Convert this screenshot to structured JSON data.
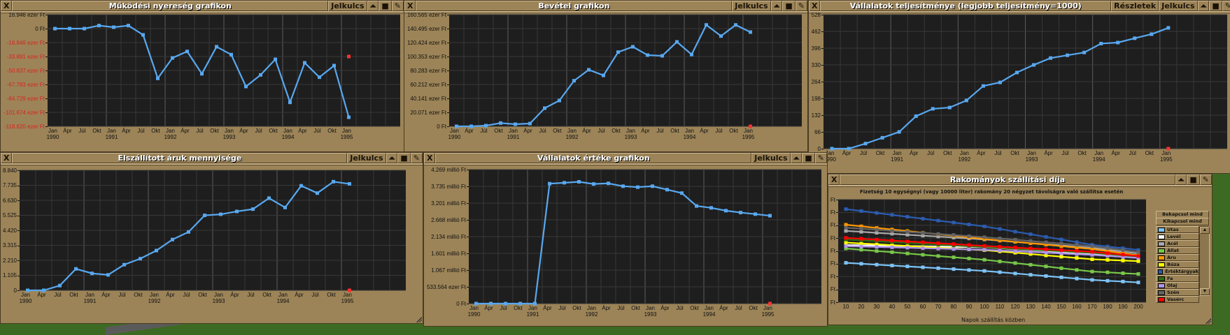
{
  "close_label": "X",
  "windows": [
    {
      "title": "Működési nyereség grafikon",
      "legend_label": "Jelkulcs"
    },
    {
      "title": "Bevétel grafikon",
      "legend_label": "Jelkulcs"
    },
    {
      "title": "Vállalatok teljesítménye (legjobb teljesítmény=1000)",
      "details_label": "Részletek",
      "legend_label": "Jelkulcs"
    },
    {
      "title": "Elszállított áruk mennyisége",
      "legend_label": "Jelkulcs"
    },
    {
      "title": "Vállalatok értéke grafikon",
      "legend_label": "Jelkulcs"
    },
    {
      "title": "Rakományok szállítási díja",
      "subtitle": "Fizetség 10 egységnyi (vagy 10000 liter) rakomány 20 négyzet távolságra való szállítsa esetén",
      "enable_all_label": "Bekapcsol mind",
      "disable_all_label": "Kikapcsol mind"
    }
  ],
  "chart_data": [
    {
      "type": "line",
      "title": "Működési nyereség grafikon",
      "unit": "ezer Ft",
      "ylim": [
        -118.62,
        16.946
      ],
      "grid": true,
      "zero_line": true,
      "y_tick_labels": [
        "16.946 ezer Ft",
        "0 Ft",
        "-16.946 ezer Ft",
        "-33.891 ezer Ft",
        "-50.837 ezer Ft",
        "-67.783 ezer Ft",
        "-84.729 ezer Ft",
        "-101.674 ezer Ft",
        "-118.620 ezer Ft"
      ],
      "x_months": [
        "Jan",
        "Ápr",
        "Júl",
        "Okt",
        "Jan",
        "Ápr",
        "Júl",
        "Okt",
        "Jan",
        "Ápr",
        "Júl",
        "Okt",
        "Jan",
        "Ápr",
        "Júl",
        "Okt",
        "Jan",
        "Ápr",
        "Júl",
        "Okt",
        "Jan"
      ],
      "x_years": [
        "1990",
        "",
        "",
        "",
        "1991",
        "",
        "",
        "",
        "1992",
        "",
        "",
        "",
        "1993",
        "",
        "",
        "",
        "1994",
        "",
        "",
        "",
        "1995"
      ],
      "series": [
        {
          "color": "#58a8f0",
          "values": [
            0,
            0,
            0,
            3.7,
            1.7,
            3.7,
            -7.6,
            -60.4,
            -35.6,
            -27.7,
            -54.8,
            -22.0,
            -31.6,
            -70.3,
            -56.2,
            -37.3,
            -89.5,
            -41.5,
            -59.0,
            -44.9,
            -107.6
          ]
        },
        {
          "color": "#ff3030",
          "values": [
            null,
            null,
            null,
            null,
            null,
            null,
            null,
            null,
            null,
            null,
            null,
            null,
            null,
            null,
            null,
            null,
            null,
            null,
            null,
            null,
            -33.891
          ]
        }
      ]
    },
    {
      "type": "line",
      "title": "Bevétel grafikon",
      "unit": "ezer Ft",
      "ylim": [
        0,
        160.565
      ],
      "grid": true,
      "y_tick_labels": [
        "160.565 ezer Ft",
        "140.495 ezer Ft",
        "120.424 ezer Ft",
        "100.353 ezer Ft",
        "80.283 ezer Ft",
        "60.212 ezer Ft",
        "40.141 ezer Ft",
        "20.071 ezer Ft",
        "0 Ft"
      ],
      "x_months": [
        "Jan",
        "Ápr",
        "Júl",
        "Okt",
        "Jan",
        "Ápr",
        "Júl",
        "Okt",
        "Jan",
        "Ápr",
        "Júl",
        "Okt",
        "Jan",
        "Ápr",
        "Júl",
        "Okt",
        "Jan",
        "Ápr",
        "Júl",
        "Okt",
        "Jan"
      ],
      "x_years": [
        "1990",
        "",
        "",
        "",
        "1991",
        "",
        "",
        "",
        "1992",
        "",
        "",
        "",
        "1993",
        "",
        "",
        "",
        "1994",
        "",
        "",
        "",
        "1995"
      ],
      "series": [
        {
          "color": "#58a8f0",
          "values": [
            0,
            0,
            1.0,
            4.7,
            3.0,
            4.0,
            26.1,
            37.1,
            65.6,
            81.3,
            73.2,
            106.7,
            114.4,
            102.4,
            101.4,
            121.4,
            103.3,
            145.8,
            129.8,
            145.8,
            135.5
          ]
        },
        {
          "color": "#ff3030",
          "values": [
            null,
            null,
            null,
            null,
            null,
            null,
            null,
            null,
            null,
            null,
            null,
            null,
            null,
            null,
            null,
            null,
            null,
            null,
            null,
            null,
            0
          ]
        }
      ]
    },
    {
      "type": "line",
      "title": "Vállalatok teljesítménye (legjobb teljesítmény=1000)",
      "ylim": [
        0,
        528
      ],
      "grid": true,
      "y_tick_labels": [
        "528",
        "462",
        "396",
        "330",
        "264",
        "198",
        "132",
        "66",
        "0"
      ],
      "x_months": [
        "Jan",
        "Ápr",
        "Júl",
        "Okt",
        "Jan",
        "Ápr",
        "Júl",
        "Okt",
        "Jan",
        "Ápr",
        "Júl",
        "Okt",
        "Jan",
        "Ápr",
        "Júl",
        "Okt",
        "Jan",
        "Ápr",
        "Júl",
        "Okt",
        "Jan"
      ],
      "x_years": [
        "1990",
        "",
        "",
        "",
        "1991",
        "",
        "",
        "",
        "1992",
        "",
        "",
        "",
        "1993",
        "",
        "",
        "",
        "1994",
        "",
        "",
        "",
        "1995"
      ],
      "series": [
        {
          "color": "#58a8f0",
          "values": [
            0,
            0,
            20,
            43,
            66,
            128,
            157,
            162,
            190,
            247,
            261,
            300,
            330,
            357,
            368,
            379,
            414,
            418,
            435,
            451,
            476
          ]
        },
        {
          "color": "#ff3030",
          "values": [
            null,
            null,
            null,
            null,
            null,
            null,
            null,
            null,
            null,
            null,
            null,
            null,
            null,
            null,
            null,
            null,
            null,
            null,
            null,
            null,
            0
          ]
        }
      ]
    },
    {
      "type": "line",
      "title": "Elszállított áruk mennyisége",
      "ylim": [
        0,
        8840
      ],
      "grid": true,
      "y_tick_labels": [
        "8.840",
        "7.735",
        "6.630",
        "5.525",
        "4.420",
        "3.315",
        "2.210",
        "1.105",
        "0"
      ],
      "x_months": [
        "Jan",
        "Ápr",
        "Júl",
        "Okt",
        "Jan",
        "Ápr",
        "Júl",
        "Okt",
        "Jan",
        "Ápr",
        "Júl",
        "Okt",
        "Jan",
        "Ápr",
        "Júl",
        "Okt",
        "Jan",
        "Ápr",
        "Júl",
        "Okt",
        "Jan"
      ],
      "x_years": [
        "1990",
        "",
        "",
        "",
        "1991",
        "",
        "",
        "",
        "1992",
        "",
        "",
        "",
        "1993",
        "",
        "",
        "",
        "1994",
        "",
        "",
        "",
        "1995"
      ],
      "series": [
        {
          "color": "#58a8f0",
          "values": [
            0,
            0,
            350,
            1580,
            1250,
            1140,
            1890,
            2330,
            2930,
            3740,
            4300,
            5520,
            5600,
            5810,
            5980,
            6790,
            6100,
            7700,
            7160,
            8000,
            7840
          ]
        },
        {
          "color": "#ff3030",
          "values": [
            null,
            null,
            null,
            null,
            null,
            null,
            null,
            null,
            null,
            null,
            null,
            null,
            null,
            null,
            null,
            null,
            null,
            null,
            null,
            null,
            0
          ]
        }
      ]
    },
    {
      "type": "line",
      "title": "Vállalatok értéke grafikon",
      "unit": "millió Ft",
      "ylim": [
        0,
        4.269
      ],
      "grid": true,
      "y_tick_labels": [
        "4.269 millió Ft",
        "3.735 millió Ft",
        "3.201 millió Ft",
        "2.668 millió Ft",
        "2.134 millió Ft",
        "1.601 millió Ft",
        "1.067 millió Ft",
        "533.564 ezer Ft",
        "0 Ft"
      ],
      "x_months": [
        "Jan",
        "Ápr",
        "Júl",
        "Okt",
        "Jan",
        "Ápr",
        "Júl",
        "Okt",
        "Jan",
        "Ápr",
        "Júl",
        "Okt",
        "Jan",
        "Ápr",
        "Júl",
        "Okt",
        "Jan",
        "Ápr",
        "Júl",
        "Okt",
        "Jan"
      ],
      "x_years": [
        "1990",
        "",
        "",
        "",
        "1991",
        "",
        "",
        "",
        "1992",
        "",
        "",
        "",
        "1993",
        "",
        "",
        "",
        "1994",
        "",
        "",
        "",
        "1995"
      ],
      "series": [
        {
          "color": "#58a8f0",
          "values": [
            0,
            0,
            0,
            0,
            0,
            3.82,
            3.85,
            3.88,
            3.81,
            3.83,
            3.74,
            3.71,
            3.74,
            3.63,
            3.52,
            3.11,
            3.05,
            2.96,
            2.9,
            2.85,
            2.8
          ]
        },
        {
          "color": "#ff3030",
          "values": [
            null,
            null,
            null,
            null,
            null,
            null,
            null,
            null,
            null,
            null,
            null,
            null,
            null,
            null,
            null,
            null,
            null,
            null,
            null,
            null,
            0
          ]
        }
      ]
    },
    {
      "type": "line",
      "title": "Rakományok szállítási díja",
      "subtitle": "Fizetség 10 egységnyi (vagy 10000 liter) rakomány 20 négyzet távolságra való szállítsa esetén",
      "xlabel": "Napok szállítás közben",
      "ylim": [
        0,
        8
      ],
      "grid": true,
      "legend": "right",
      "y_tick_labels": [
        "Ft",
        "Ft",
        "Ft",
        "Ft",
        "Ft",
        "Ft",
        "Ft",
        "Ft",
        "Ft"
      ],
      "x_tick_labels": [
        "10",
        "20",
        "30",
        "40",
        "50",
        "60",
        "70",
        "80",
        "90",
        "100",
        "110",
        "120",
        "130",
        "140",
        "150",
        "160",
        "170",
        "180",
        "190",
        "200"
      ],
      "series": [
        {
          "name": "Utas",
          "color": "#7cc4f8",
          "values": [
            3.07,
            3.0,
            2.93,
            2.86,
            2.79,
            2.72,
            2.65,
            2.58,
            2.51,
            2.44,
            2.34,
            2.24,
            2.14,
            2.04,
            1.94,
            1.84,
            1.74,
            1.67,
            1.61,
            1.54
          ]
        },
        {
          "name": "Levél",
          "color": "#ffffff",
          "values": [
            4.46,
            4.44,
            4.42,
            4.4,
            4.38,
            4.36,
            4.34,
            4.32,
            4.3,
            4.28,
            4.21,
            4.14,
            4.07,
            3.99,
            3.92,
            3.85,
            3.78,
            3.69,
            3.59,
            3.5
          ]
        },
        {
          "name": "Acél",
          "color": "#a8a8a8",
          "values": [
            5.56,
            5.49,
            5.41,
            5.34,
            5.26,
            5.19,
            5.12,
            5.04,
            4.97,
            4.89,
            4.8,
            4.7,
            4.61,
            4.52,
            4.43,
            4.33,
            4.24,
            4.09,
            3.95,
            3.8
          ]
        },
        {
          "name": "Állat",
          "color": "#78c848",
          "values": [
            4.19,
            4.09,
            3.99,
            3.9,
            3.8,
            3.7,
            3.6,
            3.5,
            3.41,
            3.31,
            3.18,
            3.05,
            2.92,
            2.79,
            2.65,
            2.52,
            2.39,
            2.33,
            2.26,
            2.2
          ]
        },
        {
          "name": "Áru",
          "color": "#ff9800",
          "values": [
            6.04,
            5.92,
            5.79,
            5.67,
            5.55,
            5.42,
            5.3,
            5.18,
            5.05,
            4.93,
            4.82,
            4.71,
            4.6,
            4.49,
            4.37,
            4.26,
            4.15,
            3.98,
            3.82,
            3.65
          ]
        },
        {
          "name": "Búza",
          "color": "#ffff00",
          "values": [
            4.65,
            4.58,
            4.52,
            4.45,
            4.39,
            4.32,
            4.25,
            4.19,
            4.12,
            4.06,
            3.96,
            3.86,
            3.76,
            3.65,
            3.55,
            3.45,
            3.35,
            3.3,
            3.25,
            3.2
          ]
        },
        {
          "name": "Értéktárgyak",
          "color": "#2c5cb0",
          "values": [
            7.26,
            7.11,
            6.96,
            6.81,
            6.66,
            6.51,
            6.36,
            6.21,
            6.06,
            5.91,
            5.71,
            5.5,
            5.3,
            5.09,
            4.89,
            4.68,
            4.48,
            4.34,
            4.21,
            4.07
          ]
        },
        {
          "name": "Fa",
          "color": "#306c10",
          "values": [
            4.89,
            4.82,
            4.76,
            4.69,
            4.63,
            4.56,
            4.49,
            4.43,
            4.36,
            4.3,
            4.24,
            4.17,
            4.11,
            4.04,
            3.98,
            3.91,
            3.85,
            3.75,
            3.65,
            3.55
          ]
        },
        {
          "name": "Olaj",
          "color": "#b094e8",
          "values": [
            4.37,
            4.34,
            4.31,
            4.28,
            4.25,
            4.21,
            4.18,
            4.15,
            4.12,
            4.09,
            4.03,
            3.98,
            3.92,
            3.86,
            3.8,
            3.75,
            3.69,
            3.61,
            3.53,
            3.45
          ]
        },
        {
          "name": "Szén",
          "color": "#646464",
          "values": [
            5.81,
            5.73,
            5.65,
            5.56,
            5.48,
            5.4,
            5.32,
            5.24,
            5.15,
            5.07,
            4.97,
            4.87,
            4.77,
            4.67,
            4.57,
            4.47,
            4.37,
            4.21,
            4.06,
            3.9
          ]
        },
        {
          "name": "Vasérc",
          "color": "#ff0000",
          "values": [
            5.02,
            4.95,
            4.88,
            4.81,
            4.74,
            4.67,
            4.6,
            4.53,
            4.46,
            4.39,
            4.32,
            4.26,
            4.19,
            4.13,
            4.06,
            4.0,
            3.93,
            3.82,
            3.71,
            3.6
          ]
        }
      ]
    }
  ]
}
